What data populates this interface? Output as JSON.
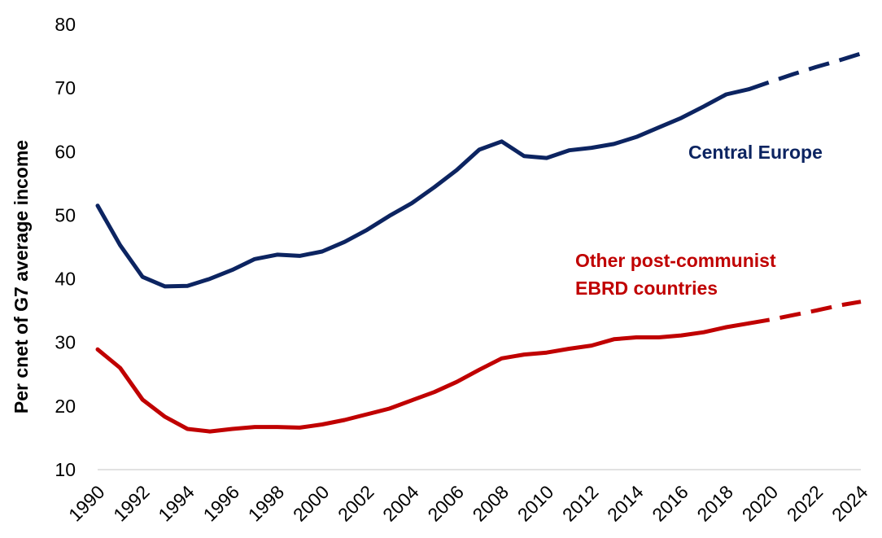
{
  "chart_data": {
    "type": "line",
    "title": "",
    "xlabel": "",
    "ylabel": "Per cnet of G7 average income",
    "xlim": [
      1990,
      2024
    ],
    "ylim": [
      10,
      80
    ],
    "yticks": [
      10,
      20,
      30,
      40,
      50,
      60,
      70,
      80
    ],
    "xticks": [
      "1990",
      "1992",
      "1994",
      "1996",
      "1998",
      "2000",
      "2002",
      "2004",
      "2006",
      "2008",
      "2010",
      "2012",
      "2014",
      "2016",
      "2018",
      "2020",
      "2022",
      "2024"
    ],
    "grid": false,
    "legend": "inline labels",
    "projection_start": 2019,
    "series": [
      {
        "name": "Central Europe",
        "color": "#0c2461",
        "x": [
          1990,
          1991,
          1992,
          1993,
          1994,
          1995,
          1996,
          1997,
          1998,
          1999,
          2000,
          2001,
          2002,
          2003,
          2004,
          2005,
          2006,
          2007,
          2008,
          2009,
          2010,
          2011,
          2012,
          2013,
          2014,
          2015,
          2016,
          2017,
          2018,
          2019,
          2020,
          2021,
          2022,
          2023,
          2024
        ],
        "values": [
          51.5,
          45.3,
          40.3,
          38.8,
          38.9,
          40.0,
          41.4,
          43.1,
          43.8,
          43.6,
          44.3,
          45.8,
          47.7,
          49.9,
          51.9,
          54.4,
          57.1,
          60.3,
          61.6,
          59.3,
          59.0,
          60.2,
          60.6,
          61.2,
          62.3,
          63.8,
          65.3,
          67.1,
          69.0,
          69.8,
          71.0,
          72.2,
          73.3,
          74.3,
          75.4
        ],
        "label_lines": [
          "Central Europe"
        ]
      },
      {
        "name": "Other post-communist EBRD countries",
        "color": "#c00000",
        "x": [
          1990,
          1991,
          1992,
          1993,
          1994,
          1995,
          1996,
          1997,
          1998,
          1999,
          2000,
          2001,
          2002,
          2003,
          2004,
          2005,
          2006,
          2007,
          2008,
          2009,
          2010,
          2011,
          2012,
          2013,
          2014,
          2015,
          2016,
          2017,
          2018,
          2019,
          2020,
          2021,
          2022,
          2023,
          2024
        ],
        "values": [
          28.9,
          26.0,
          21.0,
          18.3,
          16.4,
          16.0,
          16.4,
          16.7,
          16.7,
          16.6,
          17.1,
          17.8,
          18.7,
          19.6,
          20.9,
          22.2,
          23.8,
          25.7,
          27.5,
          28.1,
          28.4,
          29.0,
          29.5,
          30.5,
          30.8,
          30.8,
          31.1,
          31.6,
          32.4,
          33.0,
          33.6,
          34.3,
          35.0,
          35.8,
          36.4
        ],
        "label_lines": [
          "Other post-communist",
          "EBRD countries"
        ]
      }
    ]
  }
}
